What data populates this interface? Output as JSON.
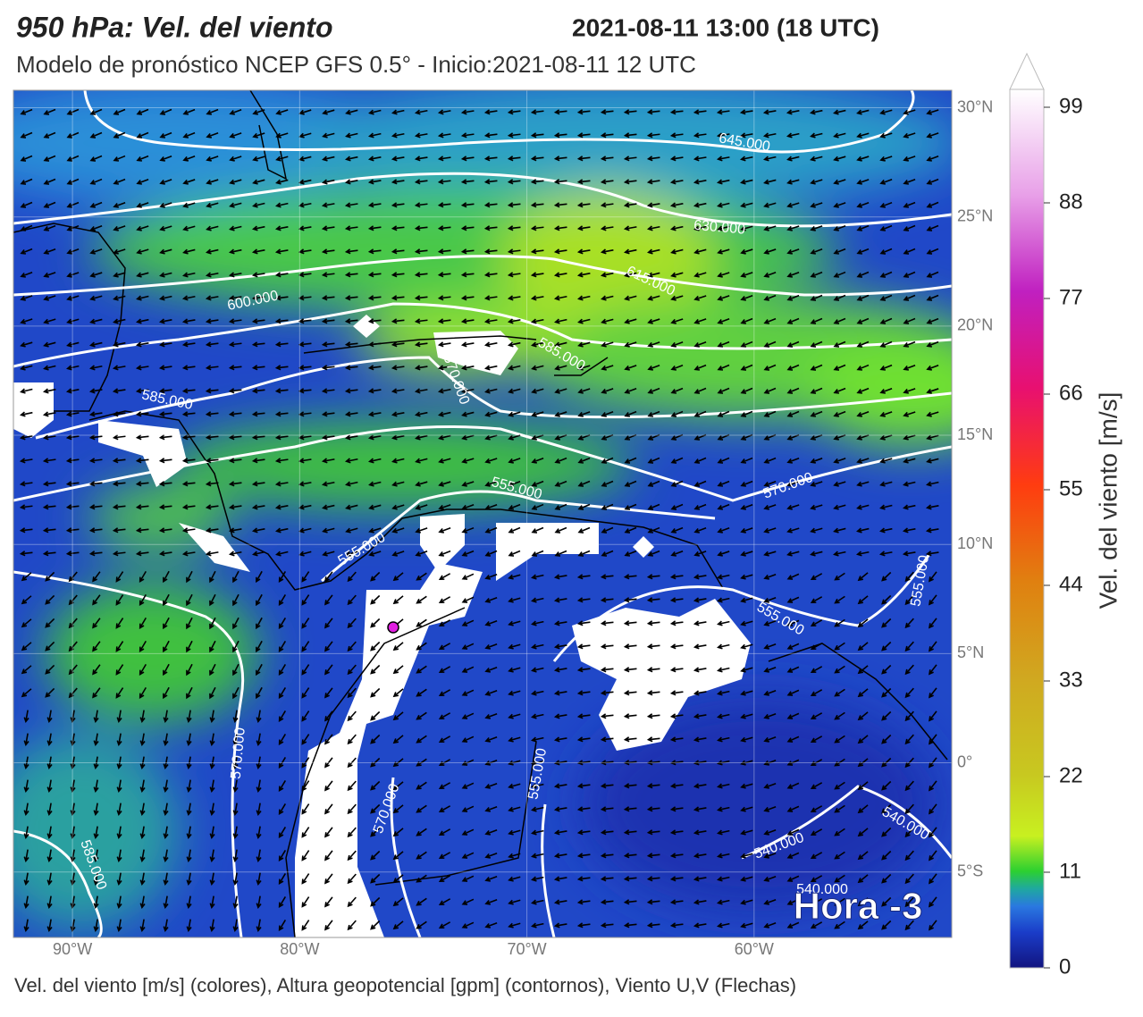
{
  "header": {
    "title": "950 hPa: Vel. del viento",
    "valid_time": "2021-08-11 13:00 (18 UTC)",
    "subtitle": "Modelo de pronóstico NCEP GFS 0.5° - Inicio:2021-08-11 12 UTC"
  },
  "map": {
    "lonlim": [
      -92.6,
      -51.3
    ],
    "latlim": [
      30.8,
      -8.0
    ],
    "lon_ticks": [
      {
        "value": -90,
        "label": "90°W"
      },
      {
        "value": -80,
        "label": "80°W"
      },
      {
        "value": -70,
        "label": "70°W"
      },
      {
        "value": -60,
        "label": "60°W"
      }
    ],
    "lat_ticks": [
      {
        "value": 30,
        "label": "30°N"
      },
      {
        "value": 25,
        "label": "25°N"
      },
      {
        "value": 20,
        "label": "20°N"
      },
      {
        "value": 15,
        "label": "15°N"
      },
      {
        "value": 10,
        "label": "10°N"
      },
      {
        "value": 5,
        "label": "5°N"
      },
      {
        "value": 0,
        "label": "0°"
      },
      {
        "value": -5,
        "label": "5°S"
      }
    ],
    "contour_labels": [
      "645.000",
      "630.000",
      "615.000",
      "600.000",
      "585.000",
      "585.000",
      "570.000",
      "555.000",
      "570.000",
      "555.000",
      "555.000",
      "555.000",
      "570.000",
      "555.000",
      "570.000",
      "540.000",
      "540.000",
      "540.000",
      "585.000"
    ],
    "overlay": "Hora -3"
  },
  "colorbar": {
    "label": "Vel. del viento [m/s]",
    "lim": [
      0,
      99
    ],
    "ticks": [
      0,
      11,
      22,
      33,
      44,
      55,
      66,
      77,
      88,
      99
    ]
  },
  "footer": "Vel. del viento [m/s] (colores), Altura geopotencial [gpm] (contornos), Viento U,V (Flechas)"
}
